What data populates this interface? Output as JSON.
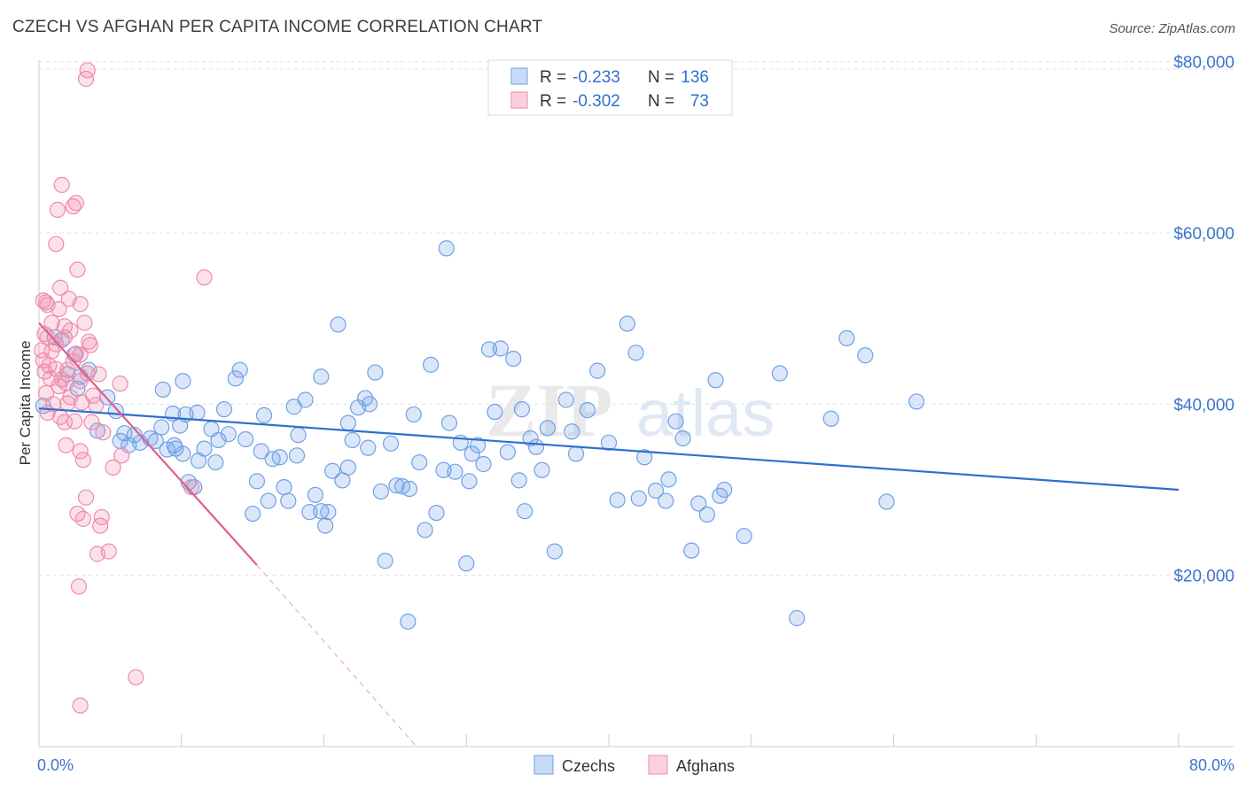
{
  "title": "CZECH VS AFGHAN PER CAPITA INCOME CORRELATION CHART",
  "source": "Source: ZipAtlas.com",
  "watermark": {
    "zip": "ZIP",
    "atlas": "atlas"
  },
  "chart_data": {
    "type": "scatter",
    "ylabel": "Per Capita Income",
    "x_tick_labels": {
      "min": "0.0%",
      "max": "80.0%"
    },
    "y_tick_labels": [
      "$20,000",
      "$40,000",
      "$60,000",
      "$80,000"
    ],
    "y_ticks": [
      20000,
      40000,
      60000,
      80000
    ],
    "xlim": [
      0,
      80
    ],
    "ylim": [
      0,
      81000
    ],
    "legend": {
      "position": "top-center",
      "rows": [
        {
          "r_label": "R =",
          "r_value": "-0.233",
          "n_label": "N =",
          "n_value": "136"
        },
        {
          "r_label": "R =",
          "r_value": "-0.302",
          "n_label": "N =",
          "n_value": "73"
        }
      ]
    },
    "colors": {
      "czechs": "#6fa1e6",
      "czechs_line": "#2f6fcf",
      "afghans": "#f08aaa",
      "afghans_line": "#e0608c",
      "tick_label": "#3d74cc"
    },
    "series": [
      {
        "name": "Czechs",
        "trend": {
          "x0": 0,
          "y0": 39500,
          "x1": 80,
          "y1": 30000
        },
        "points": [
          [
            0.3,
            39800
          ],
          [
            1.1,
            47800
          ],
          [
            1.6,
            47500
          ],
          [
            2.5,
            45800
          ],
          [
            2.0,
            43500
          ],
          [
            2.9,
            43200
          ],
          [
            2.7,
            41800
          ],
          [
            3.5,
            44000
          ],
          [
            4.8,
            40800
          ],
          [
            5.4,
            39200
          ],
          [
            4.1,
            36900
          ],
          [
            5.7,
            35700
          ],
          [
            6.0,
            36600
          ],
          [
            6.3,
            35200
          ],
          [
            7.1,
            35500
          ],
          [
            7.8,
            36000
          ],
          [
            8.2,
            35700
          ],
          [
            8.6,
            37300
          ],
          [
            9.0,
            34700
          ],
          [
            9.5,
            35200
          ],
          [
            8.7,
            41700
          ],
          [
            9.6,
            34800
          ],
          [
            10.1,
            34200
          ],
          [
            10.5,
            30900
          ],
          [
            10.9,
            30300
          ],
          [
            11.2,
            33400
          ],
          [
            11.6,
            34800
          ],
          [
            12.1,
            37100
          ],
          [
            12.6,
            35800
          ],
          [
            13.0,
            39400
          ],
          [
            10.1,
            42700
          ],
          [
            11.1,
            39000
          ],
          [
            9.4,
            38900
          ],
          [
            13.3,
            36500
          ],
          [
            13.8,
            43000
          ],
          [
            14.1,
            44000
          ],
          [
            14.5,
            35900
          ],
          [
            15.0,
            27200
          ],
          [
            15.3,
            31000
          ],
          [
            15.6,
            34500
          ],
          [
            16.1,
            28700
          ],
          [
            16.4,
            33600
          ],
          [
            16.9,
            33800
          ],
          [
            17.2,
            30300
          ],
          [
            17.5,
            28700
          ],
          [
            17.9,
            39700
          ],
          [
            18.2,
            36400
          ],
          [
            18.7,
            40500
          ],
          [
            19.0,
            27400
          ],
          [
            19.4,
            29400
          ],
          [
            19.8,
            27500
          ],
          [
            20.1,
            25800
          ],
          [
            20.3,
            27400
          ],
          [
            20.6,
            32200
          ],
          [
            21.0,
            49300
          ],
          [
            21.3,
            31100
          ],
          [
            21.7,
            37800
          ],
          [
            22.0,
            35800
          ],
          [
            22.4,
            39600
          ],
          [
            22.9,
            40700
          ],
          [
            23.2,
            40000
          ],
          [
            23.6,
            43700
          ],
          [
            24.0,
            29800
          ],
          [
            24.3,
            21700
          ],
          [
            24.7,
            35400
          ],
          [
            25.1,
            30500
          ],
          [
            25.5,
            30400
          ],
          [
            25.9,
            14600
          ],
          [
            26.3,
            38800
          ],
          [
            26.7,
            33200
          ],
          [
            27.1,
            25300
          ],
          [
            27.5,
            44600
          ],
          [
            27.9,
            27300
          ],
          [
            28.4,
            32300
          ],
          [
            28.8,
            37800
          ],
          [
            29.2,
            32100
          ],
          [
            29.6,
            35500
          ],
          [
            30.0,
            21400
          ],
          [
            30.4,
            34200
          ],
          [
            30.8,
            35200
          ],
          [
            31.2,
            33000
          ],
          [
            31.6,
            46400
          ],
          [
            32.0,
            39100
          ],
          [
            32.4,
            46500
          ],
          [
            32.9,
            34400
          ],
          [
            33.3,
            45300
          ],
          [
            33.7,
            31100
          ],
          [
            34.1,
            27500
          ],
          [
            34.5,
            36000
          ],
          [
            34.9,
            35000
          ],
          [
            35.3,
            32300
          ],
          [
            35.7,
            37200
          ],
          [
            36.2,
            22800
          ],
          [
            37.0,
            40500
          ],
          [
            37.7,
            34200
          ],
          [
            38.5,
            39300
          ],
          [
            39.2,
            43900
          ],
          [
            40.0,
            35500
          ],
          [
            40.6,
            28800
          ],
          [
            41.3,
            49400
          ],
          [
            41.9,
            46000
          ],
          [
            42.5,
            33800
          ],
          [
            43.3,
            29900
          ],
          [
            44.0,
            28700
          ],
          [
            44.7,
            38000
          ],
          [
            45.2,
            36000
          ],
          [
            45.8,
            22900
          ],
          [
            46.3,
            28400
          ],
          [
            46.9,
            27100
          ],
          [
            47.5,
            42800
          ],
          [
            47.8,
            29300
          ],
          [
            48.1,
            30000
          ],
          [
            49.5,
            24600
          ],
          [
            52.0,
            43600
          ],
          [
            53.2,
            15000
          ],
          [
            55.6,
            38300
          ],
          [
            56.7,
            47700
          ],
          [
            58.0,
            45700
          ],
          [
            59.5,
            28600
          ],
          [
            61.6,
            40300
          ],
          [
            28.6,
            58200
          ],
          [
            19.8,
            43200
          ],
          [
            10.3,
            38800
          ],
          [
            6.7,
            36400
          ],
          [
            12.4,
            33200
          ],
          [
            23.1,
            34900
          ],
          [
            26.0,
            30100
          ],
          [
            30.2,
            31000
          ],
          [
            18.1,
            34000
          ],
          [
            37.4,
            36800
          ],
          [
            44.2,
            31200
          ],
          [
            21.7,
            32600
          ],
          [
            15.8,
            38700
          ],
          [
            33.9,
            39400
          ],
          [
            9.9,
            37500
          ],
          [
            42.1,
            29000
          ]
        ]
      },
      {
        "name": "Afghans",
        "trend": {
          "x0": 0,
          "y0": 49500,
          "x1": 15.3,
          "y1": 21200
        },
        "trend_dashed": {
          "x0": 15.3,
          "y0": 21200,
          "x1": 26.5,
          "y1": 0
        },
        "points": [
          [
            3.4,
            79000
          ],
          [
            3.3,
            78000
          ],
          [
            1.6,
            65600
          ],
          [
            2.6,
            63500
          ],
          [
            2.4,
            63100
          ],
          [
            1.3,
            62700
          ],
          [
            1.2,
            58700
          ],
          [
            2.7,
            55700
          ],
          [
            11.6,
            54800
          ],
          [
            1.5,
            53600
          ],
          [
            0.3,
            52100
          ],
          [
            0.6,
            51600
          ],
          [
            2.9,
            51700
          ],
          [
            1.4,
            51100
          ],
          [
            0.9,
            49500
          ],
          [
            3.2,
            49500
          ],
          [
            1.8,
            49100
          ],
          [
            2.2,
            48600
          ],
          [
            0.6,
            47800
          ],
          [
            1.8,
            47800
          ],
          [
            3.6,
            46900
          ],
          [
            0.2,
            46300
          ],
          [
            0.9,
            46200
          ],
          [
            2.6,
            45900
          ],
          [
            2.9,
            45800
          ],
          [
            0.3,
            45100
          ],
          [
            1.2,
            44100
          ],
          [
            2.0,
            44000
          ],
          [
            0.4,
            43800
          ],
          [
            3.4,
            43600
          ],
          [
            4.2,
            43500
          ],
          [
            1.9,
            42500
          ],
          [
            2.9,
            42700
          ],
          [
            5.7,
            42400
          ],
          [
            1.4,
            42100
          ],
          [
            0.5,
            41300
          ],
          [
            2.2,
            40800
          ],
          [
            3.0,
            40200
          ],
          [
            2.0,
            40100
          ],
          [
            4.0,
            39900
          ],
          [
            0.6,
            39000
          ],
          [
            1.5,
            38500
          ],
          [
            1.8,
            37900
          ],
          [
            3.7,
            37900
          ],
          [
            4.5,
            36700
          ],
          [
            1.9,
            35200
          ],
          [
            5.8,
            34000
          ],
          [
            2.9,
            34500
          ],
          [
            3.1,
            33500
          ],
          [
            5.2,
            32600
          ],
          [
            10.7,
            30300
          ],
          [
            3.3,
            29100
          ],
          [
            2.7,
            27200
          ],
          [
            4.4,
            26800
          ],
          [
            3.1,
            26600
          ],
          [
            4.3,
            25800
          ],
          [
            4.9,
            22800
          ],
          [
            4.1,
            22500
          ],
          [
            2.8,
            18700
          ],
          [
            6.8,
            8100
          ],
          [
            2.9,
            4800
          ],
          [
            0.5,
            51900
          ],
          [
            1.2,
            47000
          ],
          [
            2.4,
            45000
          ],
          [
            0.8,
            43000
          ],
          [
            3.8,
            41000
          ],
          [
            1.0,
            40000
          ],
          [
            2.5,
            38000
          ],
          [
            0.7,
            44500
          ],
          [
            1.6,
            42900
          ],
          [
            3.5,
            47300
          ],
          [
            0.4,
            48200
          ],
          [
            2.1,
            52300
          ]
        ]
      }
    ]
  }
}
